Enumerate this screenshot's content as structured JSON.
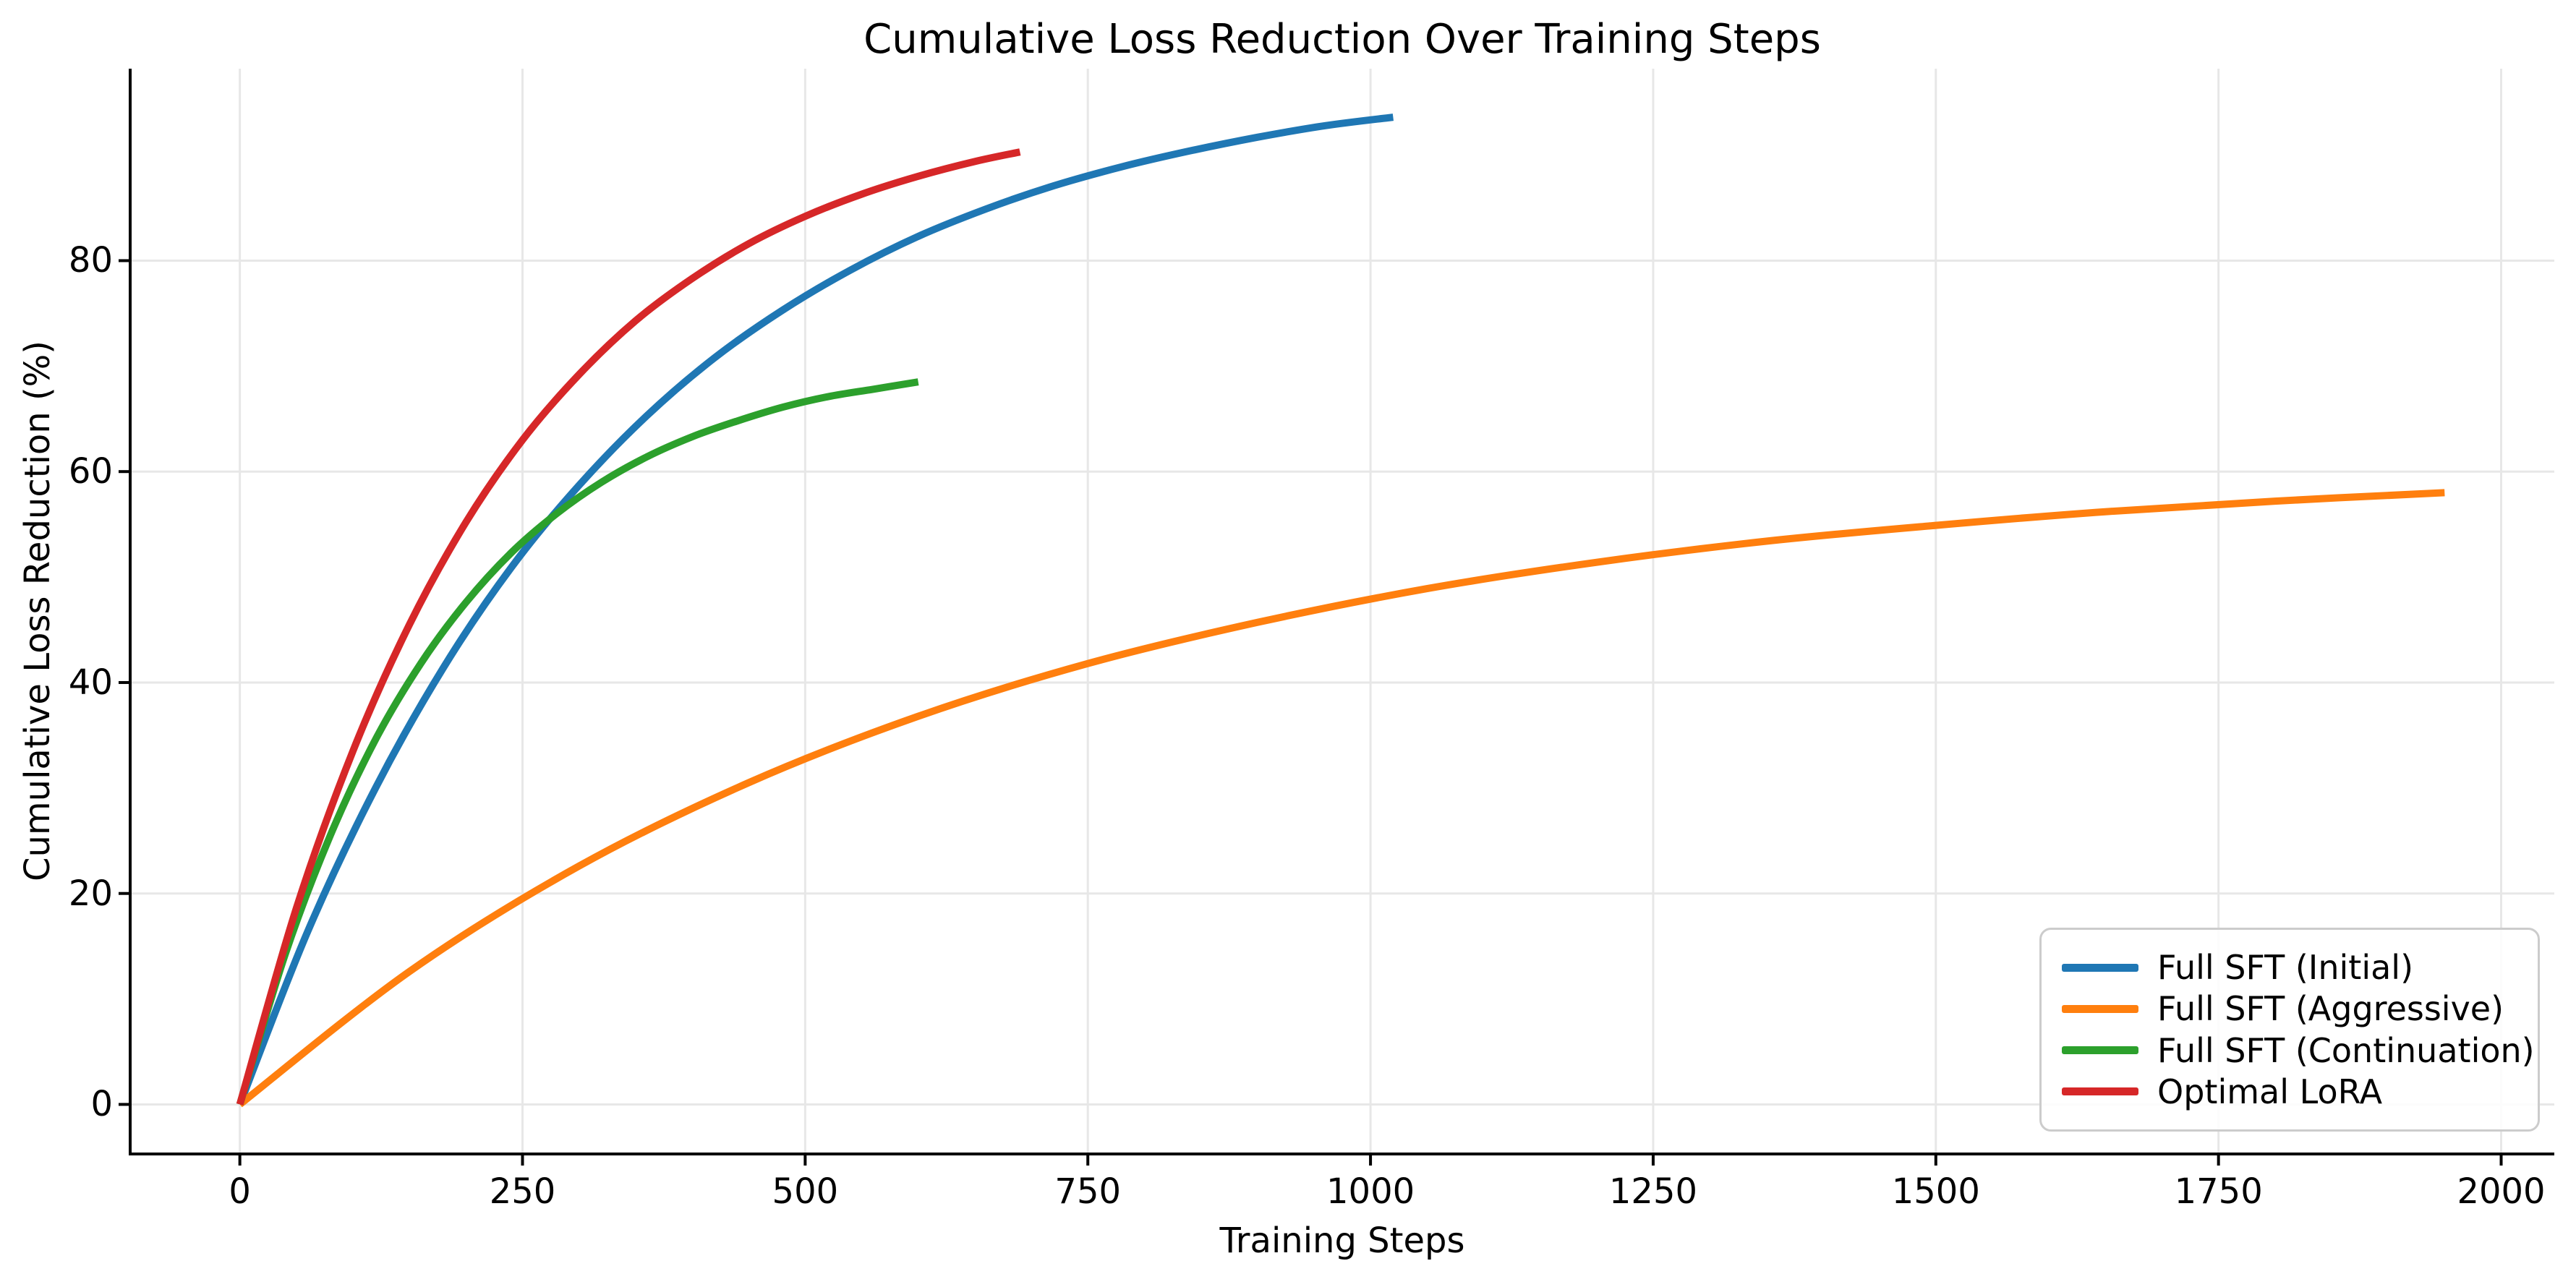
{
  "chart_data": {
    "type": "line",
    "title": "Cumulative Loss Reduction Over Training Steps",
    "xlabel": "Training Steps",
    "ylabel": "Cumulative Loss Reduction (%)",
    "x_ticks": [
      0,
      250,
      500,
      750,
      1000,
      1250,
      1500,
      1750,
      2000
    ],
    "y_ticks": [
      0,
      20,
      40,
      60,
      80
    ],
    "xlim": [
      -97,
      2047
    ],
    "ylim": [
      -4.7,
      98.2
    ],
    "grid": true,
    "legend_position": "lower right",
    "colors": {
      "grid": "#e7e7e7",
      "spine": "#000000",
      "legend_border": "#cccccc"
    },
    "series": [
      {
        "name": "Full SFT (Initial)",
        "color": "#1f77b4",
        "x": [
          0,
          60,
          120,
          180,
          240,
          300,
          360,
          420,
          480,
          540,
          600,
          660,
          720,
          780,
          840,
          900,
          960,
          1020
        ],
        "y": [
          0,
          16.4,
          30.0,
          41.4,
          50.9,
          58.7,
          65.3,
          70.8,
          75.3,
          79.1,
          82.3,
          84.9,
          87.1,
          88.9,
          90.4,
          91.7,
          92.8,
          93.6
        ]
      },
      {
        "name": "Full SFT (Aggressive)",
        "color": "#ff7f0e",
        "x": [
          0,
          150,
          300,
          450,
          600,
          750,
          900,
          1050,
          1200,
          1350,
          1500,
          1650,
          1800,
          1950
        ],
        "y": [
          0,
          12.6,
          22.6,
          30.5,
          36.8,
          41.8,
          45.7,
          48.9,
          51.4,
          53.4,
          54.9,
          56.2,
          57.2,
          58.0
        ]
      },
      {
        "name": "Full SFT (Continuation)",
        "color": "#2ca02c",
        "x": [
          0,
          40,
          80,
          120,
          160,
          200,
          240,
          280,
          320,
          360,
          400,
          440,
          480,
          520,
          560,
          600
        ],
        "y": [
          0,
          14.2,
          25.5,
          34.6,
          41.8,
          47.6,
          52.3,
          56.0,
          59.0,
          61.4,
          63.3,
          64.8,
          66.1,
          67.1,
          67.8,
          68.5
        ]
      },
      {
        "name": "Optimal LoRA",
        "color": "#d62728",
        "x": [
          0,
          50,
          100,
          150,
          200,
          250,
          300,
          350,
          400,
          450,
          500,
          550,
          600,
          650,
          690
        ],
        "y": [
          0,
          18.6,
          33.5,
          45.5,
          55.2,
          63.0,
          69.2,
          74.3,
          78.3,
          81.6,
          84.2,
          86.3,
          88.0,
          89.4,
          90.3
        ]
      }
    ]
  }
}
